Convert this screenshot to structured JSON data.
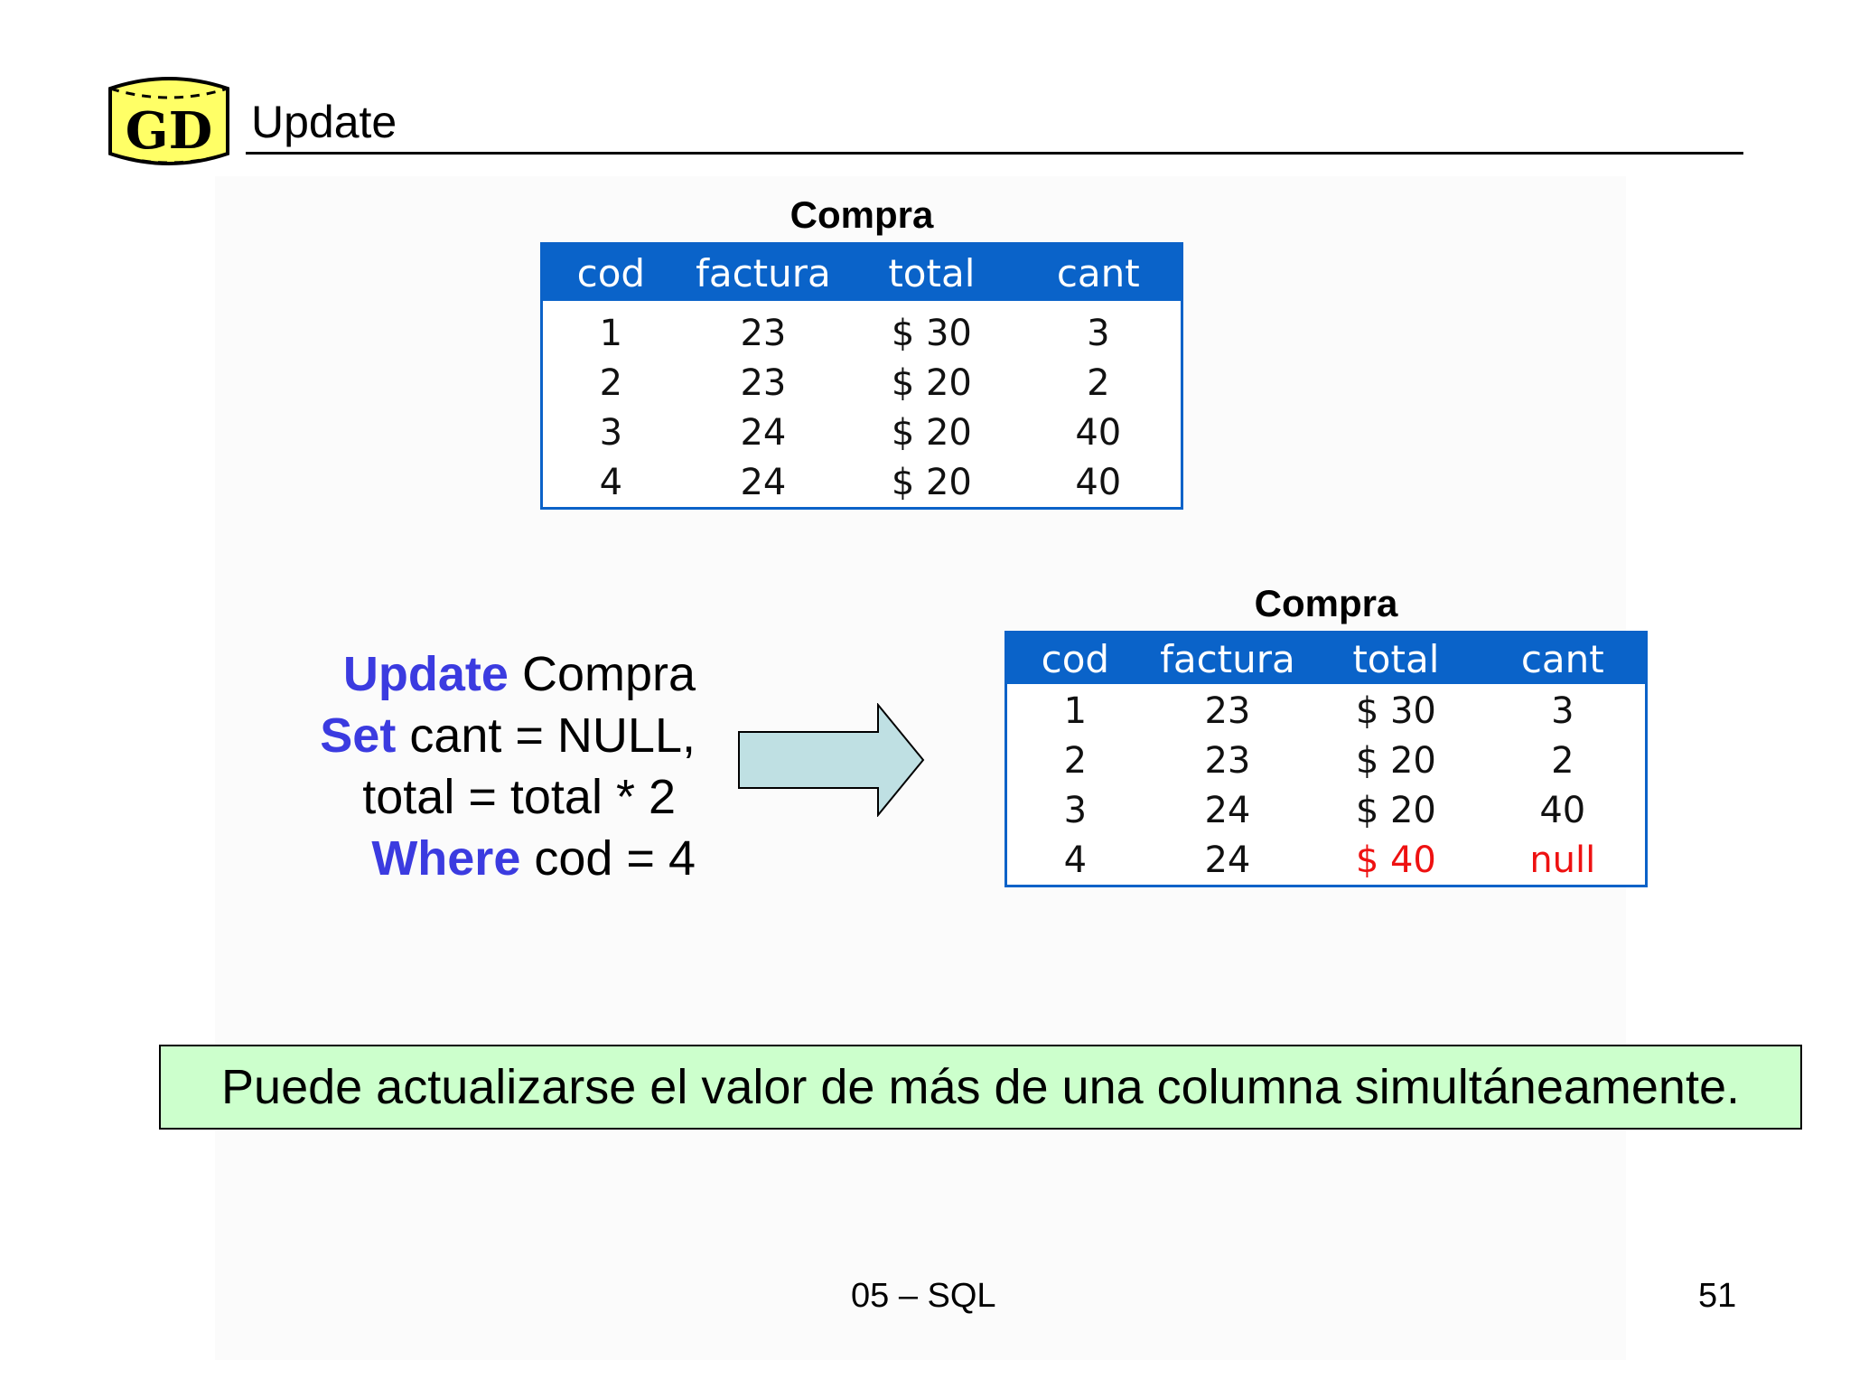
{
  "slide": {
    "logo_text": "GD",
    "title": "Update",
    "footer_center": "05 – SQL",
    "page_number": "51",
    "note": "Puede actualizarse el valor de más de una columna simultáneamente."
  },
  "table_before": {
    "caption": "Compra",
    "headers": [
      "cod",
      "factura",
      "total",
      "cant"
    ],
    "rows": [
      [
        "1",
        "23",
        "$ 30",
        "3"
      ],
      [
        "2",
        "23",
        "$ 20",
        "2"
      ],
      [
        "3",
        "24",
        "$ 20",
        "40"
      ],
      [
        "4",
        "24",
        "$ 20",
        "40"
      ]
    ]
  },
  "table_after": {
    "caption": "Compra",
    "headers": [
      "cod",
      "factura",
      "total",
      "cant"
    ],
    "rows": [
      [
        "1",
        "23",
        "$ 30",
        "3"
      ],
      [
        "2",
        "23",
        "$ 20",
        "2"
      ],
      [
        "3",
        "24",
        "$ 20",
        "40"
      ],
      [
        "4",
        "24",
        "$ 40",
        "null"
      ]
    ],
    "highlight_color": "#ee1111"
  },
  "sql": {
    "kw_update": "Update",
    "update_rest": " Compra",
    "kw_set": "Set",
    "set_rest": " cant = NULL,",
    "line3": "total = total * 2",
    "kw_where": "Where",
    "where_rest": " cod = 4",
    "keyword_color": "#3b3be0"
  },
  "colors": {
    "table_header": "#0a63c9",
    "note_background": "#ccffcc",
    "arrow_fill": "#bfe0e3",
    "logo_fill": "#ffff66"
  }
}
